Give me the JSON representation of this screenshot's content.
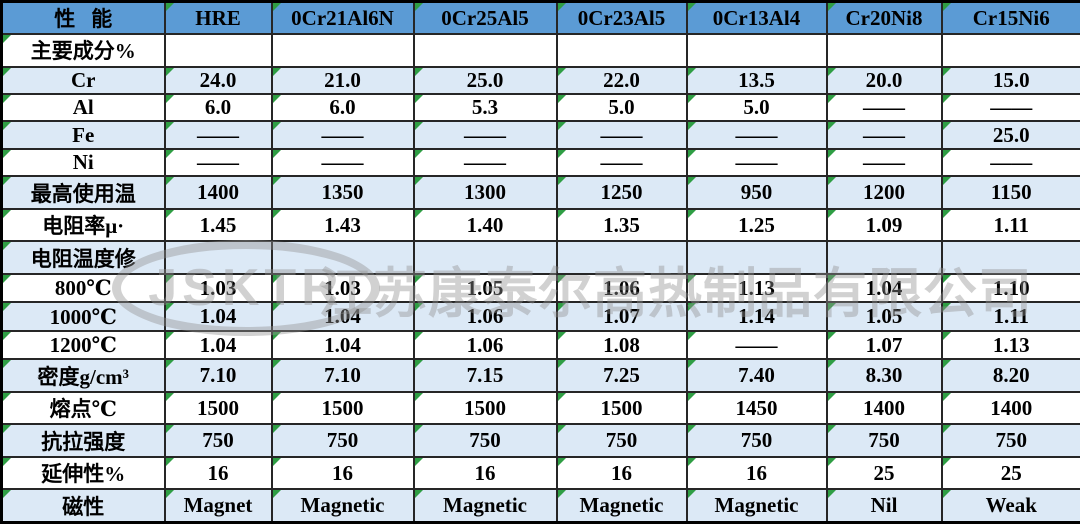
{
  "table": {
    "header": [
      "性能",
      "HRE",
      "0Cr21Al6N",
      "0Cr25Al5",
      "0Cr23Al5",
      "0Cr13Al4",
      "Cr20Ni8",
      "Cr15Ni6"
    ],
    "rows": [
      {
        "label": "主要成分%",
        "values": [
          "",
          "",
          "",
          "",
          "",
          "",
          ""
        ]
      },
      {
        "label": "Cr",
        "values": [
          "24.0",
          "21.0",
          "25.0",
          "22.0",
          "13.5",
          "20.0",
          "15.0"
        ]
      },
      {
        "label": "Al",
        "values": [
          "6.0",
          "6.0",
          "5.3",
          "5.0",
          "5.0",
          "——",
          "——"
        ]
      },
      {
        "label": "Fe",
        "values": [
          "——",
          "——",
          "——",
          "——",
          "——",
          "——",
          "25.0"
        ]
      },
      {
        "label": "Ni",
        "values": [
          "——",
          "——",
          "——",
          "——",
          "——",
          "——",
          "——"
        ]
      },
      {
        "label": "最高使用温",
        "values": [
          "1400",
          "1350",
          "1300",
          "1250",
          "950",
          "1200",
          "1150"
        ]
      },
      {
        "label": "电阻率μ·",
        "values": [
          "1.45",
          "1.43",
          "1.40",
          "1.35",
          "1.25",
          "1.09",
          "1.11"
        ]
      },
      {
        "label": "电阻温度修",
        "values": [
          "",
          "",
          "",
          "",
          "",
          "",
          ""
        ]
      },
      {
        "label": "800℃",
        "values": [
          "1.03",
          "1.03",
          "1.05",
          "1.06",
          "1.13",
          "1.04",
          "1.10"
        ]
      },
      {
        "label": "1000℃",
        "values": [
          "1.04",
          "1.04",
          "1.06",
          "1.07",
          "1.14",
          "1.05",
          "1.11"
        ]
      },
      {
        "label": "1200℃",
        "values": [
          "1.04",
          "1.04",
          "1.06",
          "1.08",
          "——",
          "1.07",
          "1.13"
        ]
      },
      {
        "label": "密度g/cm³",
        "values": [
          "7.10",
          "7.10",
          "7.15",
          "7.25",
          "7.40",
          "8.30",
          "8.20"
        ]
      },
      {
        "label": "熔点℃",
        "values": [
          "1500",
          "1500",
          "1500",
          "1500",
          "1450",
          "1400",
          "1400"
        ]
      },
      {
        "label": "抗拉强度",
        "values": [
          "750",
          "750",
          "750",
          "750",
          "750",
          "750",
          "750"
        ]
      },
      {
        "label": "延伸性%",
        "values": [
          "16",
          "16",
          "16",
          "16",
          "16",
          "25",
          "25"
        ]
      },
      {
        "label": "磁性",
        "values": [
          "Magnet",
          "Magnetic",
          "Magnetic",
          "Magnetic",
          "Magnetic",
          "Nil",
          "Weak"
        ]
      }
    ]
  },
  "watermark": {
    "logo": "JSKTR",
    "company": "江苏康泰尔高热制品有限公司"
  },
  "colors": {
    "header_bg": "#5b9bd5",
    "stripe_bg": "#dce9f6",
    "border": "#262626",
    "error_triangle_green": "#2f9e44",
    "watermark_gray": "#919191"
  }
}
